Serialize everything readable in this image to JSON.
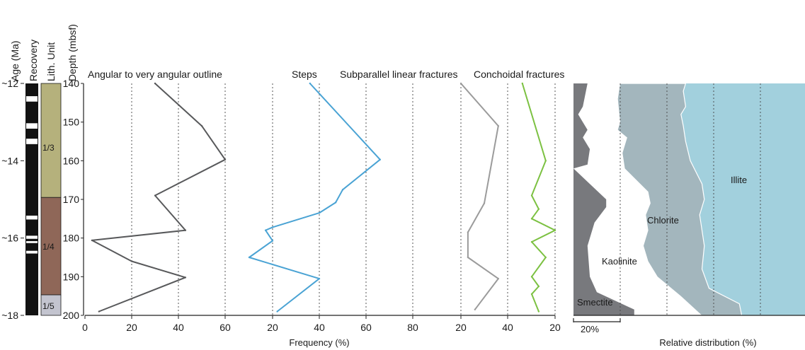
{
  "chart_data": {
    "type": "line",
    "title": "",
    "y_axis": {
      "label": "Depth (mbsf)",
      "ticks": [
        140,
        150,
        160,
        170,
        180,
        190,
        200
      ],
      "range": [
        140,
        200
      ],
      "inverted": true
    },
    "age": {
      "label": "Age (Ma)",
      "ticks": [
        {
          "label": "~12",
          "depth": 140
        },
        {
          "label": "~14",
          "depth": 160
        },
        {
          "label": "~16",
          "depth": 180
        },
        {
          "label": "~18",
          "depth": 200
        }
      ]
    },
    "recovery": {
      "label": "Recovery",
      "gaps": [
        [
          143.3,
          144.7
        ],
        [
          150.3,
          151.7
        ],
        [
          154.3,
          155.7
        ],
        [
          174.2,
          175.2
        ],
        [
          179.4,
          180.2
        ],
        [
          180.8,
          181.3
        ],
        [
          183.3,
          184.0
        ]
      ]
    },
    "lith_units": {
      "label": "Lith. Unit",
      "units": [
        {
          "name": "1/3",
          "top": 140,
          "bottom": 169.5,
          "color": "#b5b17c"
        },
        {
          "name": "1/4",
          "top": 169.5,
          "bottom": 194.7,
          "color": "#8f6758"
        },
        {
          "name": "1/5",
          "top": 194.7,
          "bottom": 200,
          "color": "#c3c4cf"
        }
      ]
    },
    "x_label": "Frequency (%)",
    "panels": [
      {
        "name": "Angular to very angular outline",
        "color": "#58595b",
        "xlim": [
          0,
          60
        ],
        "ticks": [
          0,
          20,
          40,
          60
        ],
        "grid": [
          20,
          40,
          60
        ],
        "points": [
          [
            30,
            140
          ],
          [
            50,
            151
          ],
          [
            60,
            159.7
          ],
          [
            30,
            169
          ],
          [
            43,
            178
          ],
          [
            3,
            180.6
          ],
          [
            20,
            186
          ],
          [
            43,
            190.2
          ],
          [
            6,
            199
          ]
        ]
      },
      {
        "name": "Steps",
        "color": "#4aa3d4",
        "xlim": [
          0,
          80
        ],
        "ticks": [
          20,
          40,
          60,
          80
        ],
        "grid": [
          20,
          40,
          60,
          80
        ],
        "points": [
          [
            36,
            140
          ],
          [
            66,
            159.7
          ],
          [
            50,
            167.5
          ],
          [
            47,
            170.8
          ],
          [
            40,
            173.5
          ],
          [
            20,
            177.2
          ],
          [
            17,
            178
          ],
          [
            20,
            180.7
          ],
          [
            10,
            185
          ],
          [
            40,
            190.5
          ],
          [
            22,
            199
          ]
        ]
      },
      {
        "name": "Subparallel linear fractures",
        "color": "#9b9b9b",
        "xlim": [
          0,
          40
        ],
        "ticks": [
          20,
          40
        ],
        "grid": [
          20,
          40
        ],
        "points": [
          [
            20,
            140
          ],
          [
            36,
            151
          ],
          [
            30,
            171
          ],
          [
            23,
            178.5
          ],
          [
            23,
            185
          ],
          [
            36,
            190.5
          ],
          [
            26,
            198.5
          ]
        ]
      },
      {
        "name": "Conchoidal fractures",
        "color": "#7cc142",
        "xlim": [
          0,
          20
        ],
        "ticks": [
          20
        ],
        "grid": [
          20
        ],
        "points": [
          [
            6,
            140
          ],
          [
            16,
            160
          ],
          [
            10,
            169
          ],
          [
            13,
            172.5
          ],
          [
            10,
            175
          ],
          [
            20,
            178
          ],
          [
            10,
            181
          ],
          [
            16,
            185
          ],
          [
            10,
            190
          ],
          [
            13,
            192.5
          ],
          [
            10,
            194.5
          ],
          [
            13,
            199
          ]
        ]
      }
    ],
    "clay": {
      "type": "area",
      "xlabel": "Relative distribution (%)",
      "scale_bar": "20%",
      "grid": [
        20,
        40,
        60,
        80
      ],
      "series": [
        {
          "name": "Smectite",
          "color": "#78797d"
        },
        {
          "name": "Kaolinite",
          "color": "#ffffff"
        },
        {
          "name": "Chlorite",
          "color": "#a3b6bd"
        },
        {
          "name": "Illite",
          "color": "#a2d0dd"
        }
      ],
      "boundaries": [
        {
          "name": "smectite_right",
          "points": [
            [
              6,
              140
            ],
            [
              4,
              146
            ],
            [
              2,
              148
            ],
            [
              4,
              150
            ],
            [
              6,
              152
            ],
            [
              4,
              154
            ],
            [
              7,
              157
            ],
            [
              6,
              161
            ],
            [
              0,
              162
            ],
            [
              14,
              170
            ],
            [
              14,
              172
            ],
            [
              9,
              176
            ],
            [
              6,
              182
            ],
            [
              7,
              190
            ],
            [
              10,
              194
            ],
            [
              26,
              198.5
            ],
            [
              26,
              200
            ]
          ]
        },
        {
          "name": "kaolinite_right",
          "points": [
            [
              20,
              140
            ],
            [
              19,
              144
            ],
            [
              20,
              150
            ],
            [
              19,
              152
            ],
            [
              23,
              154
            ],
            [
              21,
              158
            ],
            [
              22,
              162
            ],
            [
              32,
              168
            ],
            [
              33,
              171
            ],
            [
              31,
              174
            ],
            [
              32,
              178
            ],
            [
              30,
              182
            ],
            [
              32,
              186
            ],
            [
              36,
              190
            ],
            [
              46,
              195
            ],
            [
              55,
              200
            ]
          ]
        },
        {
          "name": "chlorite_right",
          "points": [
            [
              48,
              140
            ],
            [
              47,
              142
            ],
            [
              48,
              146
            ],
            [
              46,
              148
            ],
            [
              47,
              151
            ],
            [
              48,
              155
            ],
            [
              50,
              160
            ],
            [
              55,
              166
            ],
            [
              56,
              170
            ],
            [
              54,
              174
            ],
            [
              55,
              178
            ],
            [
              56,
              182
            ],
            [
              55,
              188
            ],
            [
              58,
              193
            ],
            [
              71,
              197
            ],
            [
              72,
              200
            ]
          ]
        }
      ],
      "labels": [
        {
          "text": "Smectite",
          "x": 3,
          "depth": 197
        },
        {
          "text": "Kaolinite",
          "x": 12,
          "depth": 184.3
        },
        {
          "text": "Chlorite",
          "x": 31,
          "depth": 178.3
        },
        {
          "text": "Illite",
          "x": 64,
          "depth": 163.5
        }
      ]
    }
  }
}
